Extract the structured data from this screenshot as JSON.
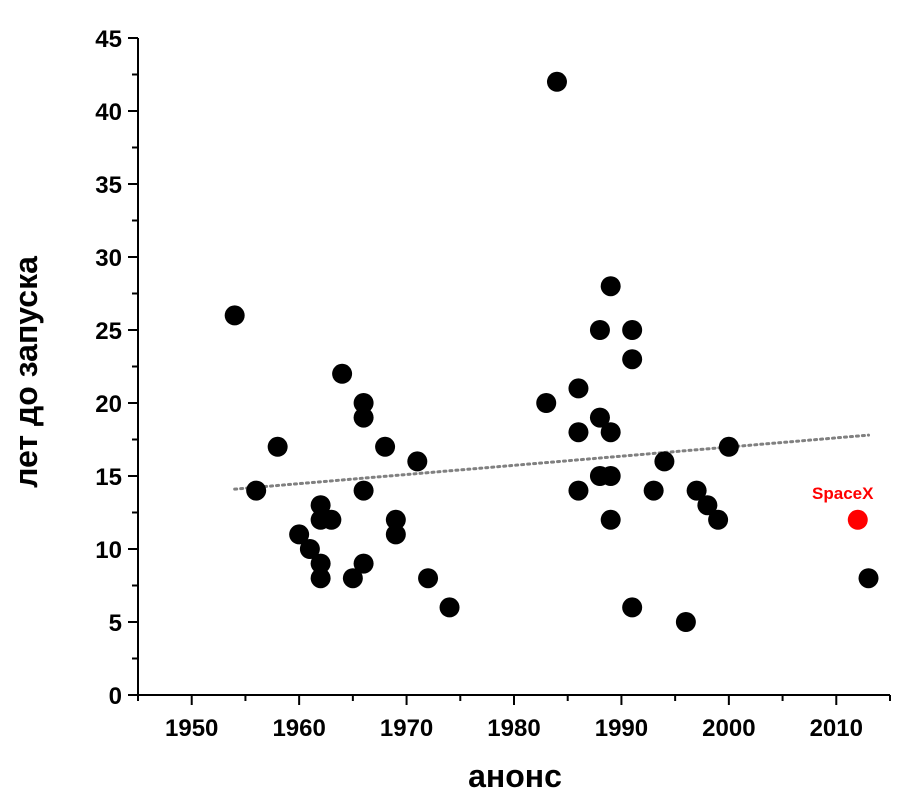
{
  "chart_data": {
    "type": "scatter",
    "xlabel": "анонс",
    "ylabel": "лет до запуска",
    "xlim": [
      1945,
      2015
    ],
    "ylim": [
      0,
      45
    ],
    "x_ticks": [
      1950,
      1960,
      1970,
      1980,
      1990,
      2000,
      2010
    ],
    "y_ticks": [
      0,
      5,
      10,
      15,
      20,
      25,
      30,
      35,
      40,
      45
    ],
    "grid": false,
    "colors": {
      "points": "#000000",
      "highlight": "#ff0000",
      "trend": "#808080"
    },
    "points": [
      {
        "x": 1954,
        "y": 26
      },
      {
        "x": 1956,
        "y": 14
      },
      {
        "x": 1958,
        "y": 17
      },
      {
        "x": 1960,
        "y": 11
      },
      {
        "x": 1961,
        "y": 10
      },
      {
        "x": 1962,
        "y": 13
      },
      {
        "x": 1962,
        "y": 12
      },
      {
        "x": 1962,
        "y": 9
      },
      {
        "x": 1962,
        "y": 8
      },
      {
        "x": 1963,
        "y": 12
      },
      {
        "x": 1964,
        "y": 22
      },
      {
        "x": 1965,
        "y": 8
      },
      {
        "x": 1966,
        "y": 20
      },
      {
        "x": 1966,
        "y": 19
      },
      {
        "x": 1966,
        "y": 14
      },
      {
        "x": 1966,
        "y": 9
      },
      {
        "x": 1968,
        "y": 17
      },
      {
        "x": 1969,
        "y": 12
      },
      {
        "x": 1969,
        "y": 11
      },
      {
        "x": 1971,
        "y": 16
      },
      {
        "x": 1972,
        "y": 8
      },
      {
        "x": 1974,
        "y": 6
      },
      {
        "x": 1983,
        "y": 20
      },
      {
        "x": 1984,
        "y": 42
      },
      {
        "x": 1986,
        "y": 21
      },
      {
        "x": 1986,
        "y": 18
      },
      {
        "x": 1986,
        "y": 14
      },
      {
        "x": 1988,
        "y": 25
      },
      {
        "x": 1988,
        "y": 19
      },
      {
        "x": 1988,
        "y": 15
      },
      {
        "x": 1989,
        "y": 28
      },
      {
        "x": 1989,
        "y": 18
      },
      {
        "x": 1989,
        "y": 15
      },
      {
        "x": 1989,
        "y": 12
      },
      {
        "x": 1991,
        "y": 25
      },
      {
        "x": 1991,
        "y": 23
      },
      {
        "x": 1991,
        "y": 6
      },
      {
        "x": 1993,
        "y": 14
      },
      {
        "x": 1994,
        "y": 16
      },
      {
        "x": 1996,
        "y": 5
      },
      {
        "x": 1997,
        "y": 14
      },
      {
        "x": 1998,
        "y": 13
      },
      {
        "x": 1999,
        "y": 12
      },
      {
        "x": 2000,
        "y": 17
      },
      {
        "x": 2013,
        "y": 8
      }
    ],
    "highlight": {
      "label": "SpaceX",
      "x": 2012,
      "y": 12
    },
    "trendline": {
      "style": "dotted",
      "x": [
        1954,
        2013
      ],
      "y": [
        14.1,
        17.8
      ]
    }
  }
}
